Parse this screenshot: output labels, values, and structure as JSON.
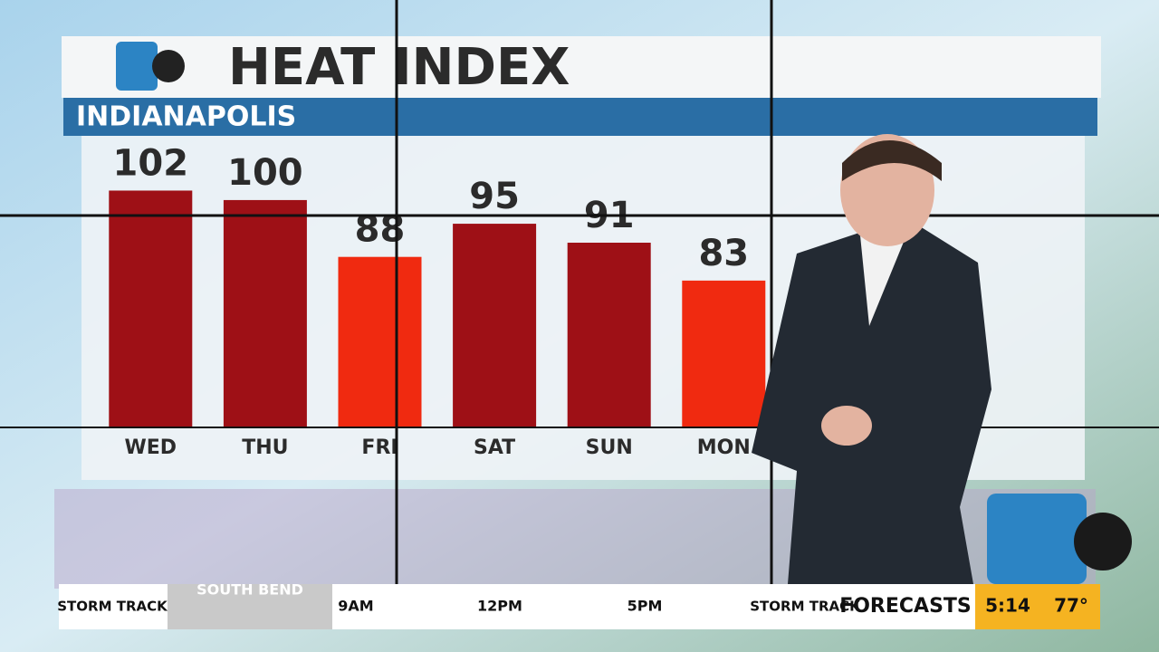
{
  "chart_data": {
    "type": "bar",
    "title": "HEAT INDEX",
    "subtitle": "INDIANAPOLIS",
    "categories": [
      "WED",
      "THU",
      "FRI",
      "SAT",
      "SUN",
      "MON"
    ],
    "values": [
      102,
      100,
      88,
      95,
      91,
      83
    ],
    "colors": [
      "#9e1016",
      "#9e1016",
      "#f02a10",
      "#9e1016",
      "#9e1016",
      "#f02a10"
    ],
    "ylim": [
      52,
      104
    ]
  },
  "ticker": {
    "brand": "STORM TRACK",
    "location": "SOUTH BEND",
    "times": [
      "9AM",
      "12PM",
      "5PM"
    ],
    "brand2": "STORM TRACK",
    "segment": "FORECASTS",
    "clock": "5:14",
    "temperature": "77°"
  }
}
